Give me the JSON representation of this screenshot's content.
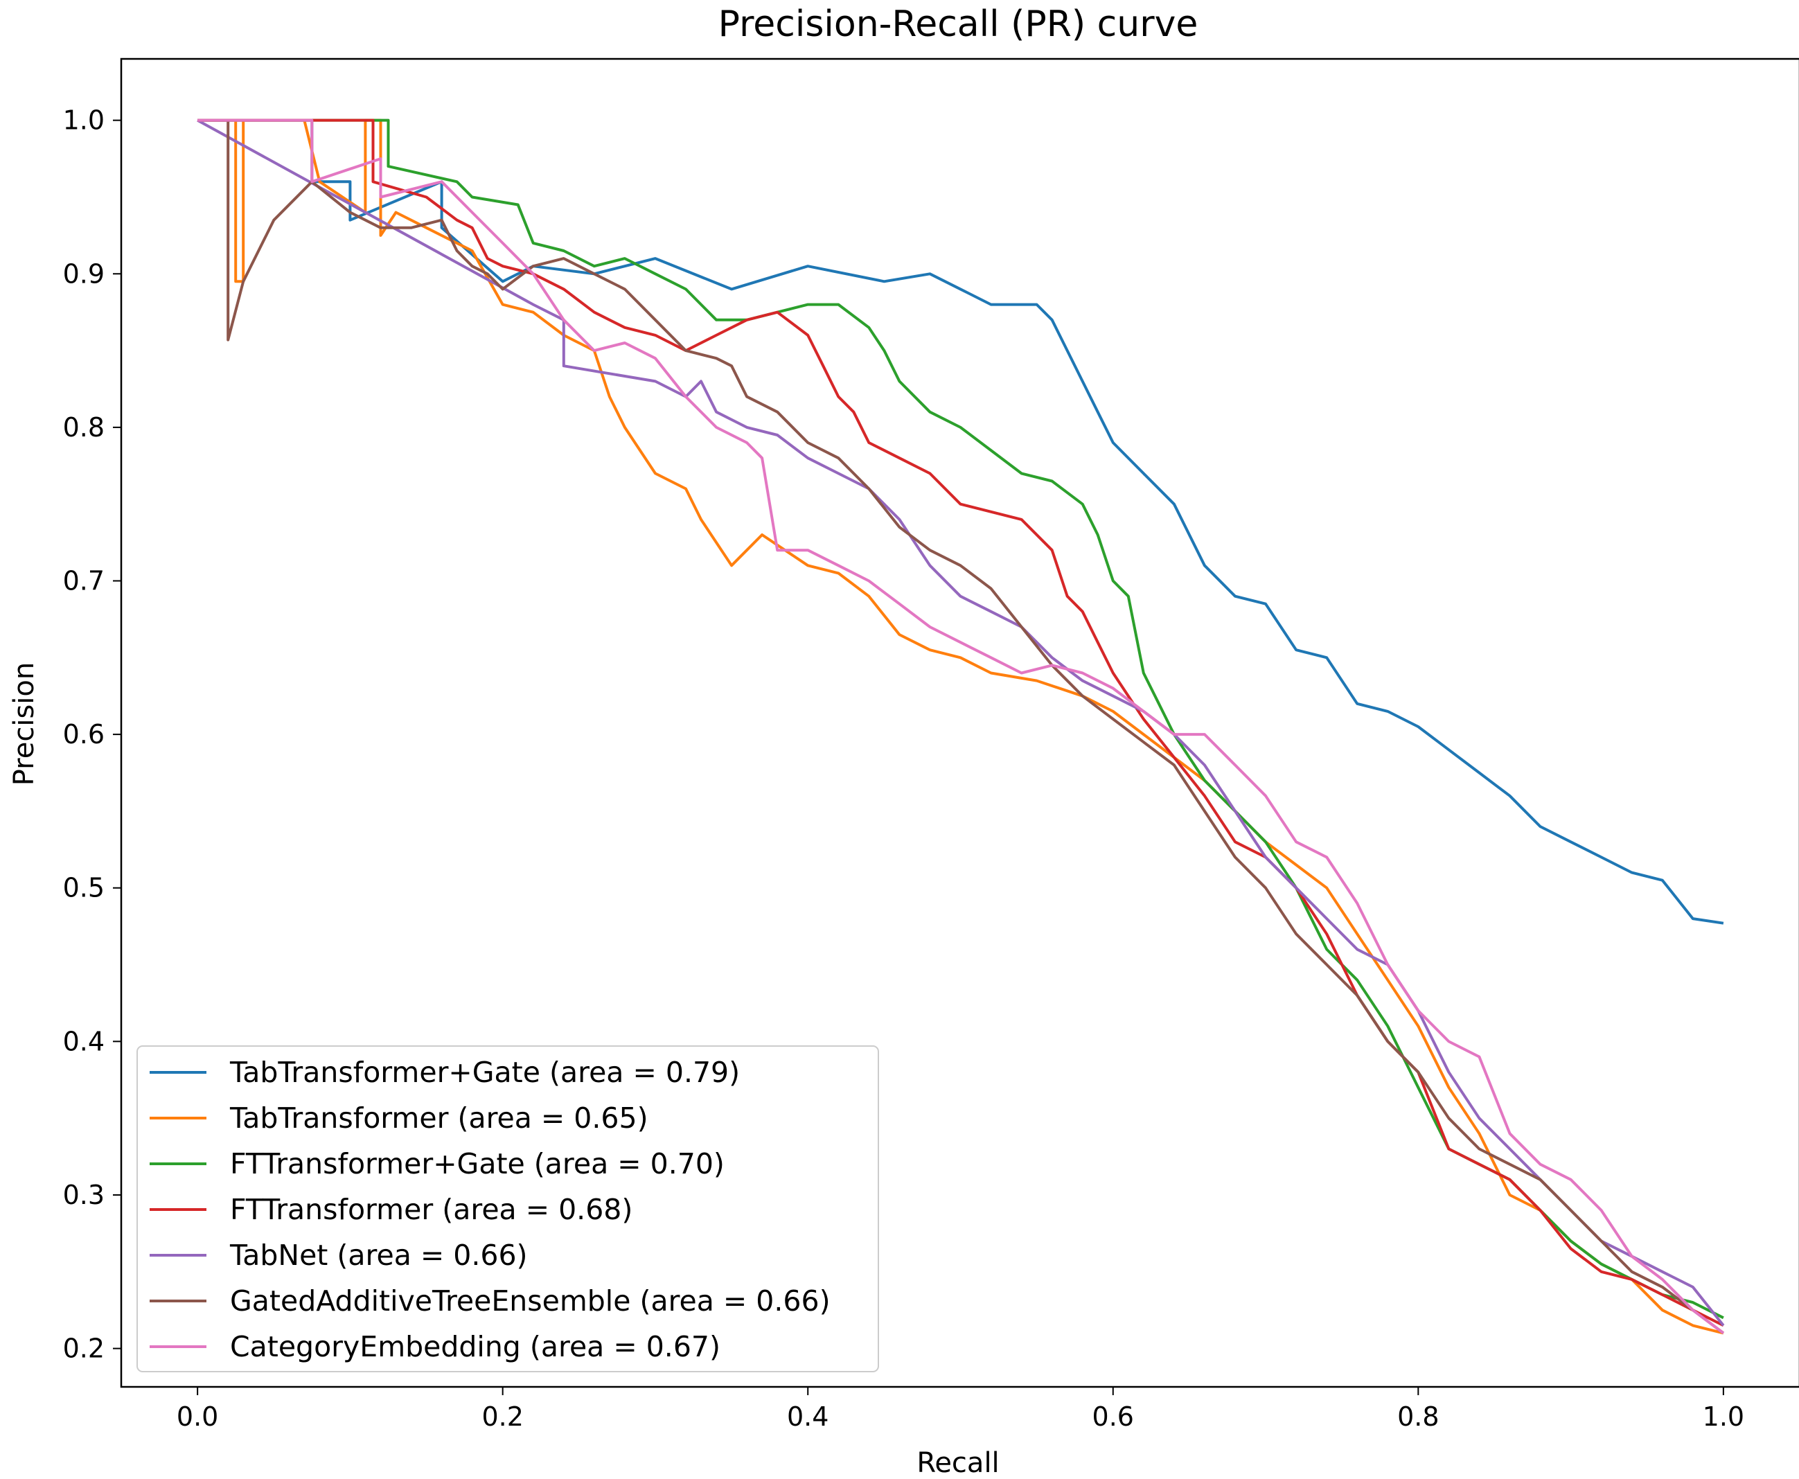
{
  "chart_data": {
    "type": "line",
    "title": "Precision-Recall (PR) curve",
    "xlabel": "Recall",
    "ylabel": "Precision",
    "xlim": [
      -0.05,
      1.05
    ],
    "ylim": [
      0.175,
      1.04
    ],
    "xticks": [
      0.0,
      0.2,
      0.4,
      0.6,
      0.8,
      1.0
    ],
    "xtick_labels": [
      "0.0",
      "0.2",
      "0.4",
      "0.6",
      "0.8",
      "1.0"
    ],
    "yticks": [
      0.2,
      0.3,
      0.4,
      0.5,
      0.6,
      0.7,
      0.8,
      0.9,
      1.0
    ],
    "ytick_labels": [
      "0.2",
      "0.3",
      "0.4",
      "0.5",
      "0.6",
      "0.7",
      "0.8",
      "0.9",
      "1.0"
    ],
    "grid": false,
    "legend_position": "lower-left",
    "series": [
      {
        "name": "TabTransformer+Gate (area = 0.79)",
        "color": "#1f77b4",
        "x": [
          0.0,
          0.075,
          0.075,
          0.1,
          0.1,
          0.16,
          0.16,
          0.2,
          0.22,
          0.26,
          0.3,
          0.35,
          0.4,
          0.45,
          0.48,
          0.5,
          0.52,
          0.55,
          0.56,
          0.57,
          0.58,
          0.59,
          0.6,
          0.62,
          0.64,
          0.66,
          0.68,
          0.7,
          0.72,
          0.74,
          0.76,
          0.78,
          0.8,
          0.82,
          0.84,
          0.86,
          0.88,
          0.9,
          0.92,
          0.94,
          0.96,
          0.98,
          1.0
        ],
        "y": [
          1.0,
          1.0,
          0.96,
          0.96,
          0.935,
          0.96,
          0.93,
          0.895,
          0.905,
          0.9,
          0.91,
          0.89,
          0.905,
          0.895,
          0.9,
          0.89,
          0.88,
          0.88,
          0.87,
          0.85,
          0.83,
          0.81,
          0.79,
          0.77,
          0.75,
          0.71,
          0.69,
          0.685,
          0.655,
          0.65,
          0.62,
          0.615,
          0.605,
          0.59,
          0.575,
          0.56,
          0.54,
          0.53,
          0.52,
          0.51,
          0.505,
          0.48,
          0.477
        ]
      },
      {
        "name": "TabTransformer (area = 0.65)",
        "color": "#ff7f0e",
        "x": [
          0.0,
          0.025,
          0.025,
          0.03,
          0.03,
          0.07,
          0.08,
          0.11,
          0.11,
          0.12,
          0.12,
          0.13,
          0.15,
          0.18,
          0.2,
          0.22,
          0.24,
          0.26,
          0.27,
          0.28,
          0.3,
          0.32,
          0.33,
          0.35,
          0.37,
          0.4,
          0.42,
          0.44,
          0.46,
          0.48,
          0.5,
          0.52,
          0.55,
          0.58,
          0.6,
          0.62,
          0.64,
          0.66,
          0.68,
          0.7,
          0.72,
          0.74,
          0.76,
          0.78,
          0.8,
          0.82,
          0.84,
          0.86,
          0.88,
          0.9,
          0.92,
          0.94,
          0.96,
          0.98,
          1.0
        ],
        "y": [
          1.0,
          1.0,
          0.895,
          0.895,
          1.0,
          1.0,
          0.96,
          0.94,
          1.0,
          1.0,
          0.925,
          0.94,
          0.93,
          0.915,
          0.88,
          0.875,
          0.86,
          0.85,
          0.82,
          0.8,
          0.77,
          0.76,
          0.74,
          0.71,
          0.73,
          0.71,
          0.705,
          0.69,
          0.665,
          0.655,
          0.65,
          0.64,
          0.635,
          0.625,
          0.615,
          0.6,
          0.585,
          0.57,
          0.55,
          0.53,
          0.515,
          0.5,
          0.47,
          0.44,
          0.41,
          0.37,
          0.34,
          0.3,
          0.29,
          0.27,
          0.255,
          0.245,
          0.225,
          0.215,
          0.21
        ]
      },
      {
        "name": "FTTransformer+Gate (area = 0.70)",
        "color": "#2ca02c",
        "x": [
          0.0,
          0.125,
          0.125,
          0.17,
          0.18,
          0.21,
          0.22,
          0.24,
          0.26,
          0.28,
          0.3,
          0.32,
          0.34,
          0.36,
          0.38,
          0.4,
          0.42,
          0.44,
          0.45,
          0.46,
          0.48,
          0.5,
          0.52,
          0.54,
          0.56,
          0.58,
          0.59,
          0.6,
          0.61,
          0.62,
          0.63,
          0.64,
          0.66,
          0.68,
          0.7,
          0.72,
          0.74,
          0.76,
          0.78,
          0.8,
          0.82,
          0.84,
          0.86,
          0.88,
          0.9,
          0.92,
          0.94,
          0.96,
          0.98,
          1.0
        ],
        "y": [
          1.0,
          1.0,
          0.97,
          0.96,
          0.95,
          0.945,
          0.92,
          0.915,
          0.905,
          0.91,
          0.9,
          0.89,
          0.87,
          0.87,
          0.875,
          0.88,
          0.88,
          0.865,
          0.85,
          0.83,
          0.81,
          0.8,
          0.785,
          0.77,
          0.765,
          0.75,
          0.73,
          0.7,
          0.69,
          0.64,
          0.62,
          0.6,
          0.57,
          0.55,
          0.53,
          0.5,
          0.46,
          0.44,
          0.41,
          0.37,
          0.33,
          0.32,
          0.31,
          0.29,
          0.27,
          0.255,
          0.245,
          0.235,
          0.23,
          0.22
        ]
      },
      {
        "name": "FTTransformer (area = 0.68)",
        "color": "#d62728",
        "x": [
          0.0,
          0.115,
          0.115,
          0.15,
          0.17,
          0.18,
          0.19,
          0.2,
          0.22,
          0.24,
          0.26,
          0.28,
          0.3,
          0.32,
          0.34,
          0.36,
          0.38,
          0.4,
          0.41,
          0.42,
          0.43,
          0.44,
          0.46,
          0.48,
          0.5,
          0.52,
          0.54,
          0.56,
          0.57,
          0.58,
          0.59,
          0.6,
          0.62,
          0.64,
          0.66,
          0.68,
          0.7,
          0.72,
          0.74,
          0.76,
          0.78,
          0.8,
          0.82,
          0.84,
          0.86,
          0.88,
          0.9,
          0.92,
          0.94,
          0.96,
          0.98,
          1.0
        ],
        "y": [
          1.0,
          1.0,
          0.96,
          0.95,
          0.935,
          0.93,
          0.91,
          0.905,
          0.9,
          0.89,
          0.875,
          0.865,
          0.86,
          0.85,
          0.86,
          0.87,
          0.875,
          0.86,
          0.84,
          0.82,
          0.81,
          0.79,
          0.78,
          0.77,
          0.75,
          0.745,
          0.74,
          0.72,
          0.69,
          0.68,
          0.66,
          0.64,
          0.61,
          0.585,
          0.56,
          0.53,
          0.52,
          0.5,
          0.47,
          0.43,
          0.4,
          0.38,
          0.33,
          0.32,
          0.31,
          0.29,
          0.265,
          0.25,
          0.245,
          0.235,
          0.225,
          0.215
        ]
      },
      {
        "name": "TabNet (area = 0.66)",
        "color": "#9467bd",
        "x": [
          0.0,
          0.22,
          0.24,
          0.24,
          0.3,
          0.32,
          0.33,
          0.34,
          0.36,
          0.38,
          0.4,
          0.42,
          0.44,
          0.46,
          0.48,
          0.5,
          0.52,
          0.54,
          0.56,
          0.58,
          0.6,
          0.62,
          0.64,
          0.66,
          0.68,
          0.7,
          0.72,
          0.74,
          0.76,
          0.78,
          0.8,
          0.82,
          0.84,
          0.86,
          0.88,
          0.9,
          0.92,
          0.94,
          0.96,
          0.98,
          1.0
        ],
        "y": [
          1.0,
          0.88,
          0.87,
          0.84,
          0.83,
          0.82,
          0.83,
          0.81,
          0.8,
          0.795,
          0.78,
          0.77,
          0.76,
          0.74,
          0.71,
          0.69,
          0.68,
          0.67,
          0.65,
          0.635,
          0.625,
          0.615,
          0.6,
          0.58,
          0.55,
          0.52,
          0.5,
          0.48,
          0.46,
          0.45,
          0.42,
          0.38,
          0.35,
          0.33,
          0.31,
          0.29,
          0.27,
          0.26,
          0.25,
          0.24,
          0.215
        ]
      },
      {
        "name": "GatedAdditiveTreeEnsemble (area = 0.66)",
        "color": "#8c564b",
        "x": [
          0.0,
          0.02,
          0.02,
          0.03,
          0.05,
          0.075,
          0.1,
          0.12,
          0.14,
          0.16,
          0.17,
          0.18,
          0.19,
          0.2,
          0.22,
          0.24,
          0.26,
          0.28,
          0.3,
          0.32,
          0.34,
          0.35,
          0.36,
          0.38,
          0.4,
          0.42,
          0.44,
          0.46,
          0.48,
          0.5,
          0.52,
          0.54,
          0.56,
          0.58,
          0.6,
          0.62,
          0.64,
          0.66,
          0.68,
          0.7,
          0.72,
          0.74,
          0.76,
          0.78,
          0.8,
          0.82,
          0.84,
          0.86,
          0.88,
          0.9,
          0.92,
          0.94,
          0.96,
          0.98,
          1.0
        ],
        "y": [
          1.0,
          1.0,
          0.857,
          0.895,
          0.935,
          0.96,
          0.94,
          0.93,
          0.93,
          0.935,
          0.915,
          0.905,
          0.9,
          0.89,
          0.905,
          0.91,
          0.9,
          0.89,
          0.87,
          0.85,
          0.845,
          0.84,
          0.82,
          0.81,
          0.79,
          0.78,
          0.76,
          0.735,
          0.72,
          0.71,
          0.695,
          0.67,
          0.645,
          0.625,
          0.61,
          0.595,
          0.58,
          0.55,
          0.52,
          0.5,
          0.47,
          0.45,
          0.43,
          0.4,
          0.38,
          0.35,
          0.33,
          0.32,
          0.31,
          0.29,
          0.27,
          0.25,
          0.24,
          0.225,
          0.21
        ]
      },
      {
        "name": "CategoryEmbedding (area = 0.67)",
        "color": "#e377c2",
        "x": [
          0.0,
          0.075,
          0.075,
          0.12,
          0.12,
          0.16,
          0.18,
          0.2,
          0.22,
          0.24,
          0.26,
          0.28,
          0.3,
          0.32,
          0.34,
          0.36,
          0.37,
          0.38,
          0.4,
          0.42,
          0.44,
          0.46,
          0.48,
          0.5,
          0.52,
          0.54,
          0.56,
          0.58,
          0.6,
          0.62,
          0.64,
          0.66,
          0.68,
          0.7,
          0.72,
          0.74,
          0.76,
          0.78,
          0.8,
          0.82,
          0.84,
          0.86,
          0.88,
          0.9,
          0.92,
          0.94,
          0.96,
          0.98,
          1.0
        ],
        "y": [
          1.0,
          1.0,
          0.96,
          0.975,
          0.95,
          0.96,
          0.94,
          0.92,
          0.9,
          0.87,
          0.85,
          0.855,
          0.845,
          0.82,
          0.8,
          0.79,
          0.78,
          0.72,
          0.72,
          0.71,
          0.7,
          0.685,
          0.67,
          0.66,
          0.65,
          0.64,
          0.645,
          0.64,
          0.63,
          0.615,
          0.6,
          0.6,
          0.58,
          0.56,
          0.53,
          0.52,
          0.49,
          0.45,
          0.42,
          0.4,
          0.39,
          0.34,
          0.32,
          0.31,
          0.29,
          0.26,
          0.245,
          0.225,
          0.21
        ]
      }
    ]
  }
}
